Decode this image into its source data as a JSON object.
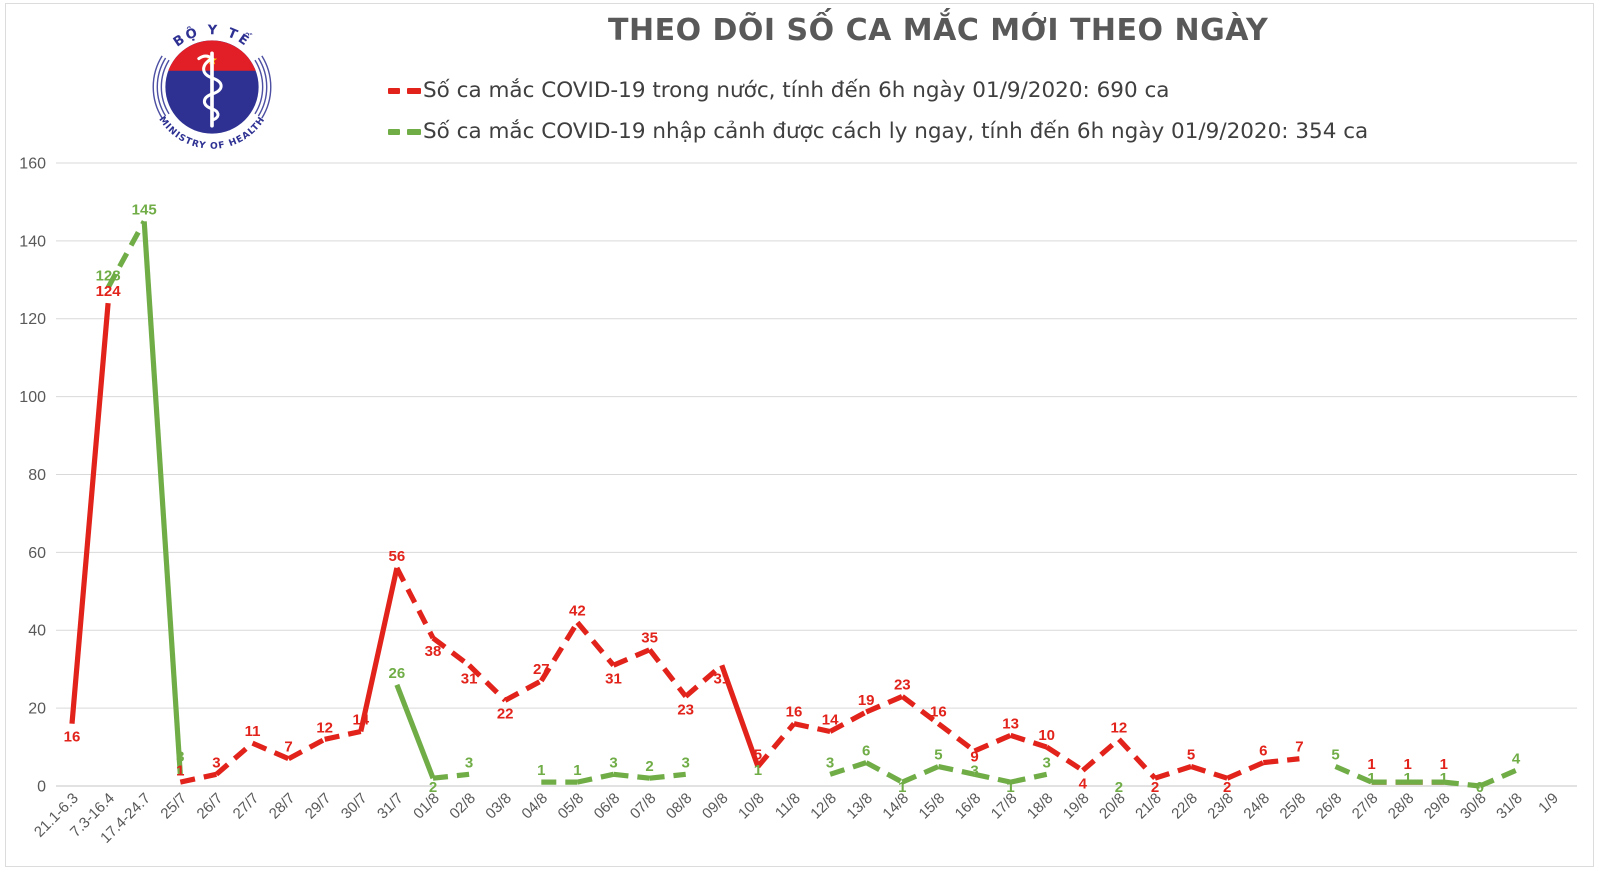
{
  "header": {
    "title": "THEO DÕI SỐ CA MẮC MỚI THEO NGÀY",
    "logo": {
      "top_text": "BỘ Y TẾ",
      "bottom_text": "MINISTRY OF HEALTH",
      "navy": "#2e3192",
      "red": "#e21f26",
      "star_yellow": "#ffd500"
    },
    "legend": [
      {
        "label": "Số ca mắc COVID-19 trong nước, tính đến 6h ngày 01/9/2020: 690 ca",
        "color": "#e2231b"
      },
      {
        "label": "Số ca mắc COVID-19 nhập cảnh được cách ly ngay, tính đến 6h ngày 01/9/2020: 354 ca",
        "color": "#70ad47"
      }
    ]
  },
  "chart_data": {
    "type": "line",
    "title": "THEO DÕI SỐ CA MẮC MỚI THEO NGÀY",
    "xlabel": "",
    "ylabel": "",
    "ylim": [
      0,
      160
    ],
    "ytick_step": 20,
    "grid": true,
    "line_style": "dashed",
    "legend_position": "top",
    "categories": [
      "21.1-6.3",
      "7.3-16.4",
      "17.4-24.7",
      "25/7",
      "26/7",
      "27/7",
      "28/7",
      "29/7",
      "30/7",
      "31/7",
      "01/8",
      "02/8",
      "03/8",
      "04/8",
      "05/8",
      "06/8",
      "07/8",
      "08/8",
      "09/8",
      "10/8",
      "11/8",
      "12/8",
      "13/8",
      "14/8",
      "15/8",
      "16/8",
      "17/8",
      "18/8",
      "19/8",
      "20/8",
      "21/8",
      "22/8",
      "23/8",
      "24/8",
      "25/8",
      "26/8",
      "27/8",
      "28/8",
      "29/8",
      "30/8",
      "31/8",
      "1/9"
    ],
    "series": [
      {
        "name": "Số ca mắc COVID-19 trong nước",
        "total": "690 ca",
        "color": "#e2231b",
        "values": [
          16,
          124,
          null,
          1,
          3,
          11,
          7,
          12,
          14,
          56,
          38,
          31,
          22,
          27,
          42,
          31,
          35,
          23,
          31,
          5,
          16,
          14,
          19,
          23,
          16,
          9,
          13,
          10,
          4,
          12,
          2,
          5,
          2,
          6,
          7,
          null,
          1,
          1,
          1,
          null,
          null,
          null
        ],
        "label_below": [
          0,
          10,
          11,
          12,
          15,
          17,
          18,
          25,
          28,
          30,
          32
        ]
      },
      {
        "name": "Số ca mắc COVID-19 nhập cảnh được cách ly ngay",
        "total": "354 ca",
        "color": "#70ad47",
        "values": [
          null,
          128,
          145,
          3,
          null,
          null,
          null,
          null,
          null,
          26,
          2,
          3,
          null,
          1,
          1,
          3,
          2,
          3,
          null,
          1,
          null,
          3,
          6,
          1,
          5,
          3,
          1,
          3,
          null,
          2,
          null,
          null,
          null,
          null,
          null,
          5,
          1,
          1,
          1,
          0,
          4,
          null
        ],
        "label_below": [
          10,
          23,
          26,
          29,
          39
        ]
      }
    ],
    "axis_color": "#595959",
    "gridline_color": "#d9d9d9"
  }
}
